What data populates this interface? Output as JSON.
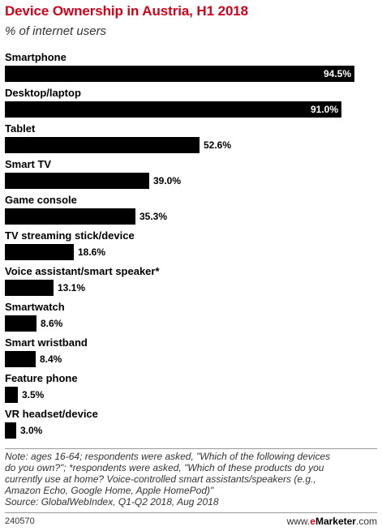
{
  "header": {
    "title": "Device Ownership in Austria, H1 2018",
    "subtitle": "% of internet users"
  },
  "chart_data": {
    "type": "bar",
    "orientation": "horizontal",
    "title": "Device Ownership in Austria, H1 2018",
    "subtitle": "% of internet users",
    "categories": [
      "Smartphone",
      "Desktop/laptop",
      "Tablet",
      "Smart TV",
      "Game console",
      "TV streaming stick/device",
      "Voice assistant/smart speaker*",
      "Smartwatch",
      "Smart wristband",
      "Feature phone",
      "VR headset/device"
    ],
    "values": [
      94.5,
      91.0,
      52.6,
      39.0,
      35.3,
      18.6,
      13.1,
      8.6,
      8.4,
      3.5,
      3.0
    ],
    "value_labels": [
      "94.5%",
      "91.0%",
      "52.6%",
      "39.0%",
      "35.3%",
      "18.6%",
      "13.1%",
      "8.6%",
      "8.4%",
      "3.5%",
      "3.0%"
    ],
    "xlim": [
      0,
      100
    ],
    "grid": false,
    "bar_color": "#000000"
  },
  "footnote": {
    "lines": [
      "Note: ages 16-64; respondents were asked, \"Which of the following devices",
      "do you own?\"; *respondents were asked, \"Which of these products do you",
      "currently use at home? Voice-controlled smart assistants/speakers (e.g.,",
      "Amazon Echo, Google Home, Apple HomePod)\"",
      "Source: GlobalWebIndex, Q1-Q2 2018, Aug 2018"
    ]
  },
  "footer": {
    "chart_id": "240570",
    "brand_prefix": "www.",
    "brand_e": "e",
    "brand_name": "Marketer",
    "brand_suffix": ".com"
  },
  "colors": {
    "title": "#d0021b",
    "bar": "#000000"
  }
}
